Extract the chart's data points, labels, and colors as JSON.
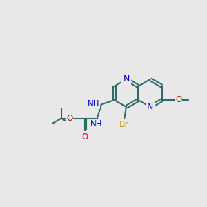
{
  "background_color": "#e8e8e8",
  "bond_color": "#2d6b6b",
  "bond_width": 1.5,
  "atom_colors": {
    "C": "#2d6b6b",
    "N": "#0000cc",
    "O": "#cc0000",
    "Br": "#cc8800",
    "H": "#888888"
  },
  "font_size": 8,
  "fig_size": [
    3.0,
    3.0
  ],
  "dpi": 100
}
